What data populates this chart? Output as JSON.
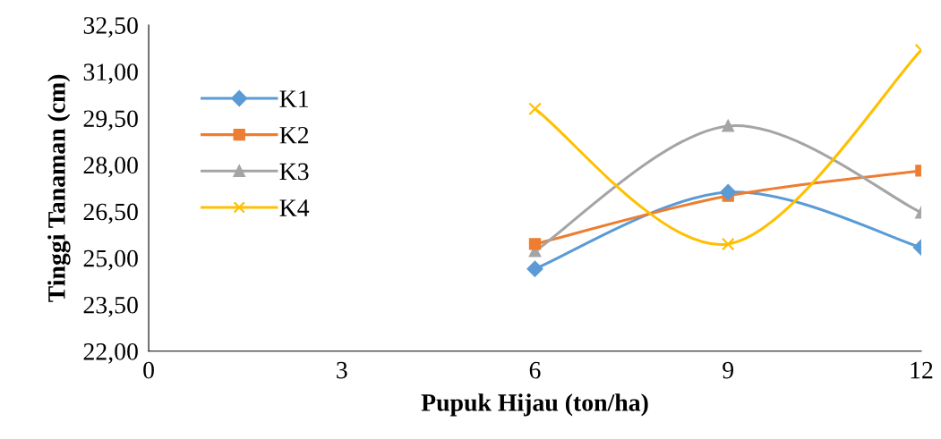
{
  "chart_data": {
    "type": "line",
    "xlabel": "Pupuk Hijau (ton/ha)",
    "ylabel": "Tinggi Tanaman (cm)",
    "x": [
      6,
      9,
      12
    ],
    "series": [
      {
        "name": "K1",
        "color": "#5b9bd5",
        "marker": "diamond",
        "values": [
          24.65,
          27.12,
          25.34
        ]
      },
      {
        "name": "K2",
        "color": "#ed7d31",
        "marker": "square",
        "values": [
          25.45,
          27.0,
          27.81
        ]
      },
      {
        "name": "K3",
        "color": "#a5a5a5",
        "marker": "triangle",
        "values": [
          25.22,
          29.25,
          26.46
        ]
      },
      {
        "name": "K4",
        "color": "#ffc000",
        "marker": "cross",
        "values": [
          29.8,
          25.45,
          31.69
        ]
      }
    ],
    "xlim": [
      0,
      12
    ],
    "xticks": [
      0,
      3,
      6,
      9,
      12
    ],
    "ylim": [
      22,
      32.5
    ],
    "yticks": [
      {
        "value": 22,
        "label": "22,00"
      },
      {
        "value": 23.5,
        "label": "23,50"
      },
      {
        "value": 25,
        "label": "25,00"
      },
      {
        "value": 26.5,
        "label": "26,50"
      },
      {
        "value": 28,
        "label": "28,00"
      },
      {
        "value": 29.5,
        "label": "29,50"
      },
      {
        "value": 31,
        "label": "31,00"
      },
      {
        "value": 32.5,
        "label": "32,50"
      }
    ],
    "grid": false,
    "legend": "left",
    "line_style": "solid"
  }
}
